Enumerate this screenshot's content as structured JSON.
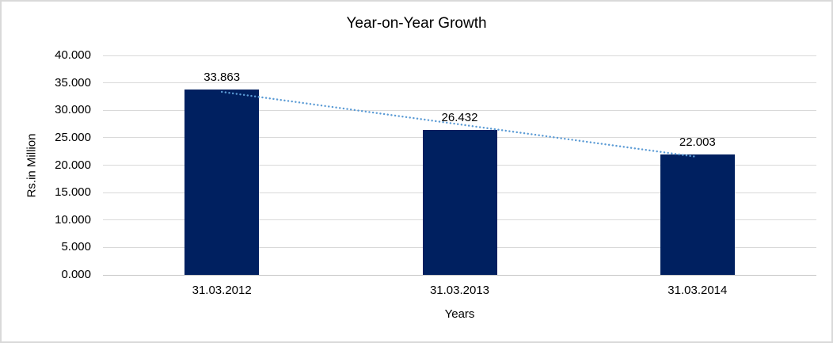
{
  "frame": {
    "background": "#ffffff",
    "border_color": "#d9d9d9"
  },
  "chart_data": {
    "type": "bar",
    "title": "Year-on-Year Growth",
    "categories": [
      "31.03.2012",
      "31.03.2013",
      "31.03.2014"
    ],
    "values": [
      33863,
      26432,
      22003
    ],
    "value_labels": [
      "33.863",
      "26.432",
      "22.003"
    ],
    "xlabel": "Years",
    "ylabel": "Rs.in Million",
    "ylim": [
      0,
      40000
    ],
    "ytick_step": 5000,
    "ytick_labels": [
      "0.000",
      "5.000",
      "10.000",
      "15.000",
      "20.000",
      "25.000",
      "30.000",
      "35.000",
      "40.000"
    ],
    "grid": true,
    "legend": "none",
    "bar_color": "#002060",
    "gridline_color": "#d9d9d9",
    "text_color": "#000000",
    "trendline": {
      "type": "linear",
      "style": "dotted",
      "color": "#5b9bd5",
      "from_category": "31.03.2012",
      "to_category": "31.03.2014"
    }
  }
}
